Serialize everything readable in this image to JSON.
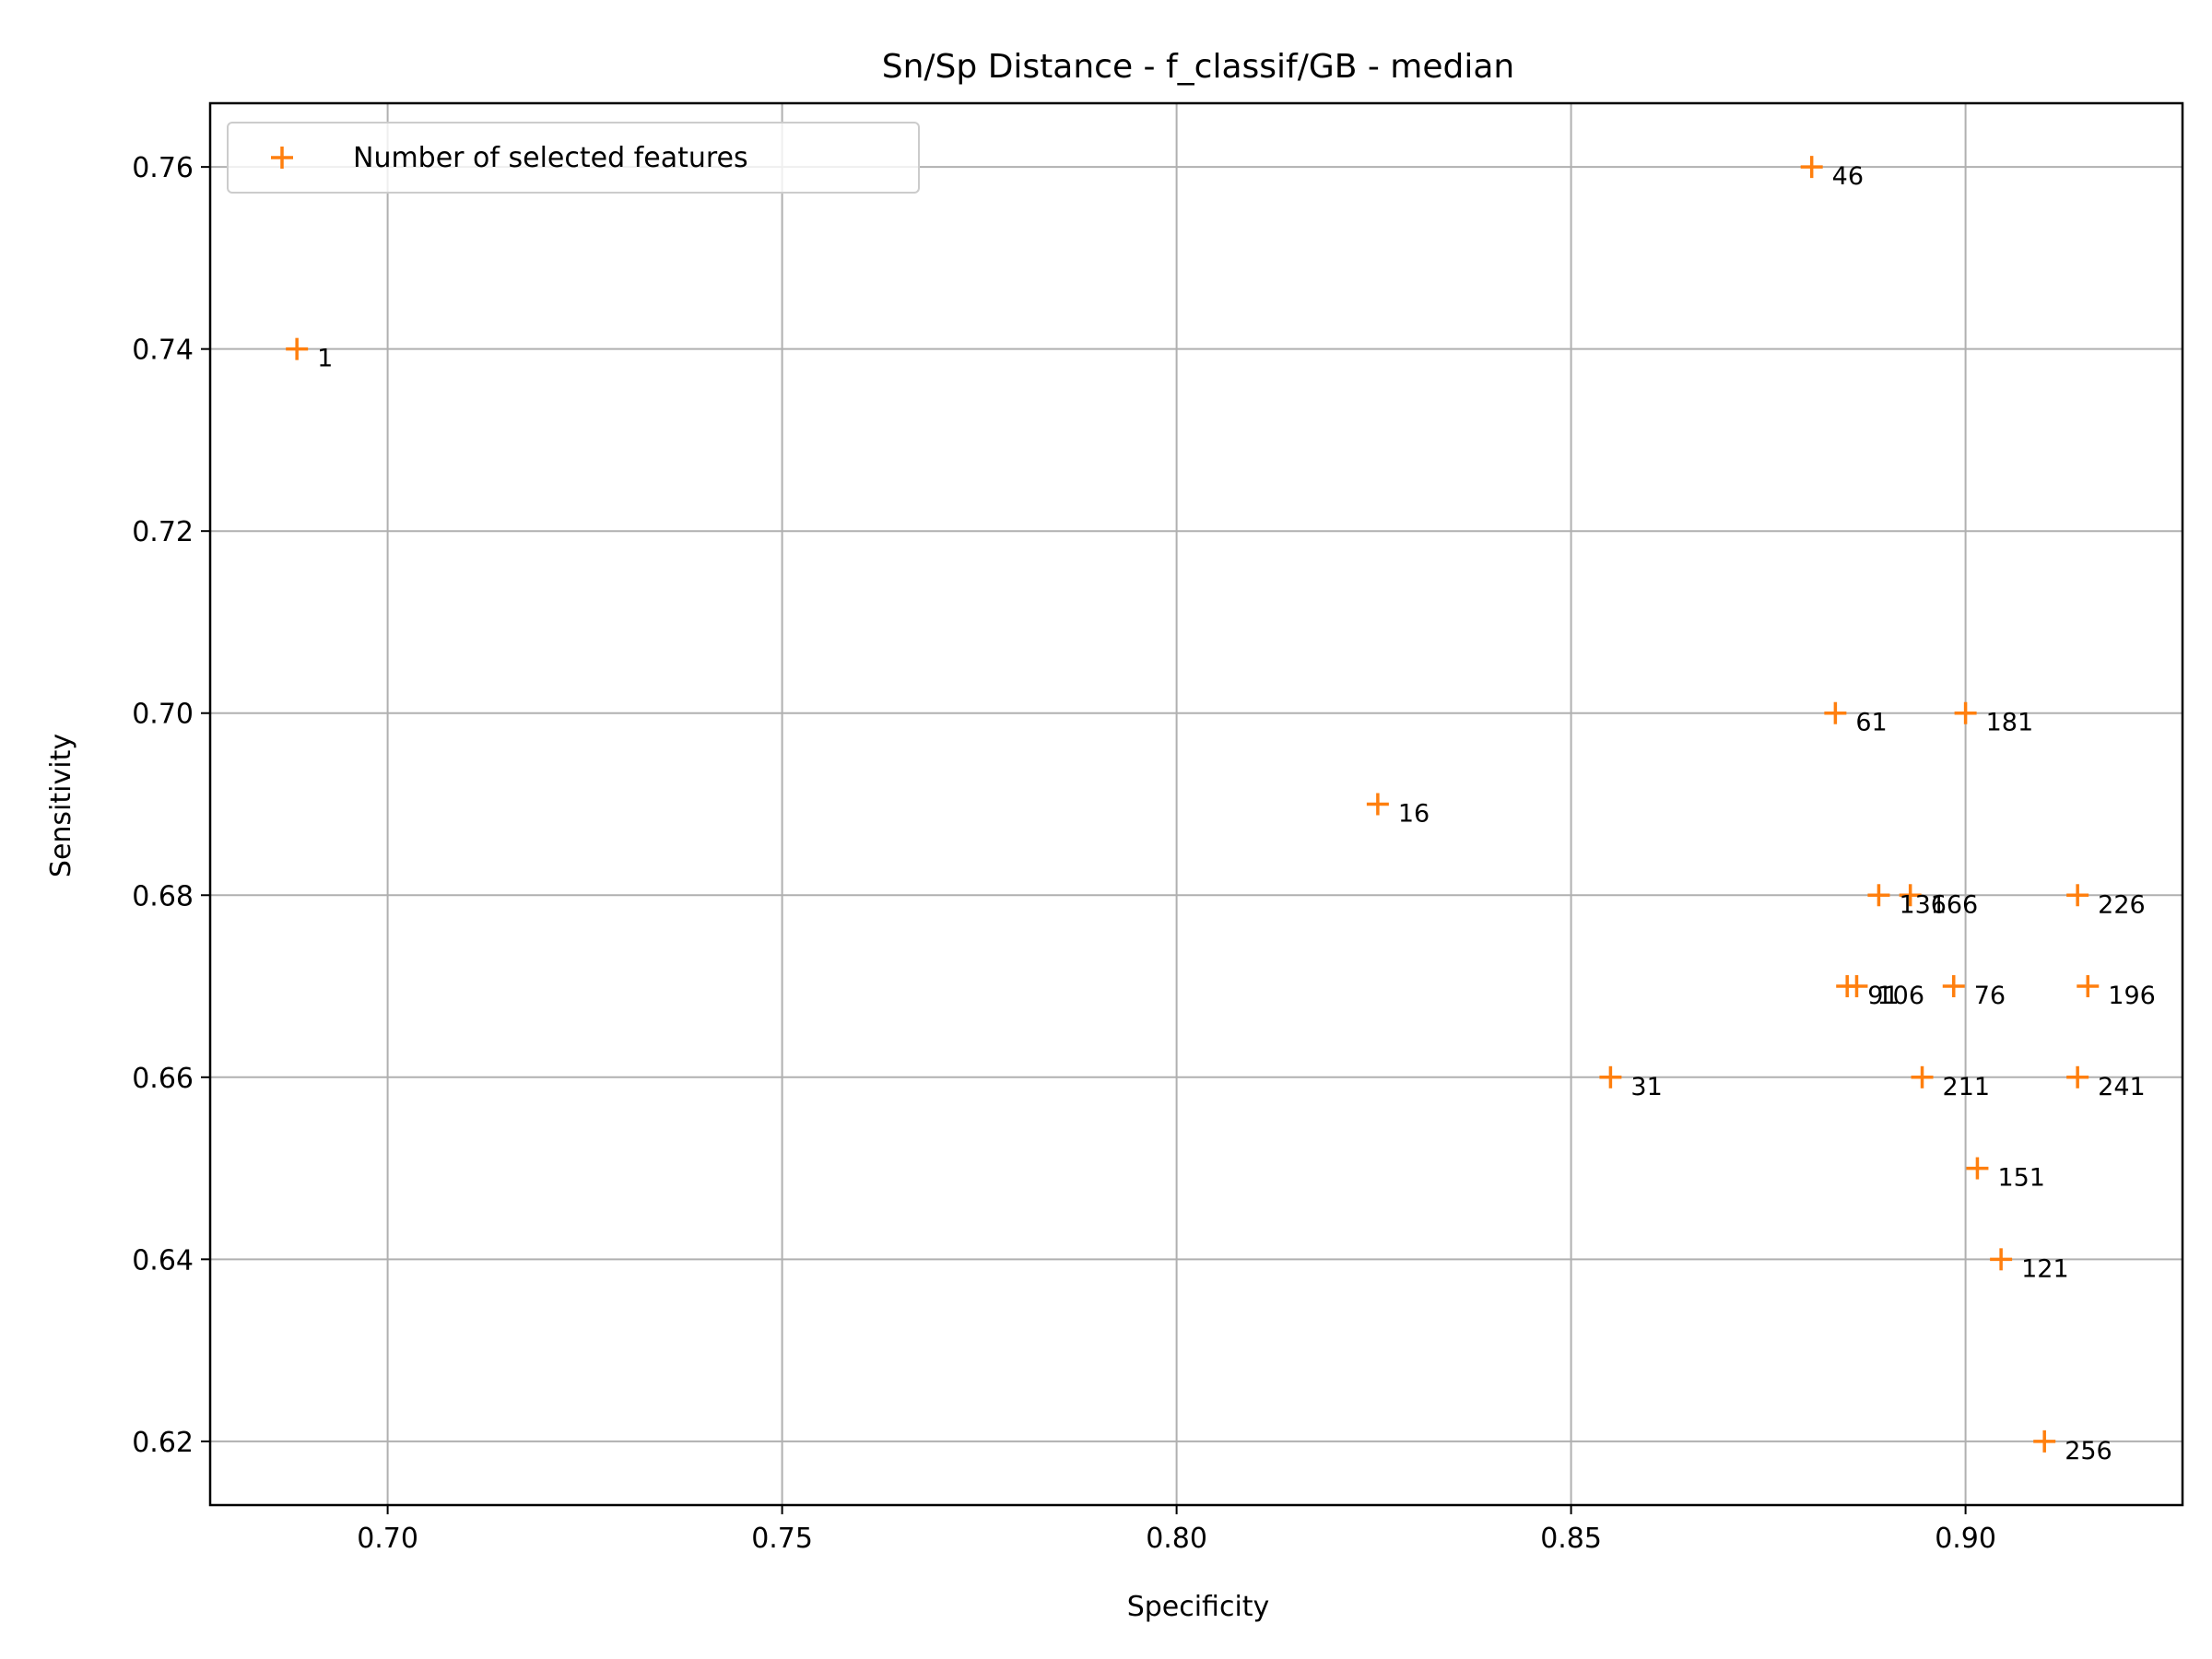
{
  "chart_data": {
    "type": "scatter",
    "title": "Sn/Sp Distance - f_classif/GB - median",
    "xlabel": "Specificity",
    "ylabel": "Sensitivity",
    "xlim": [
      0.6775,
      0.9275
    ],
    "ylim": [
      0.613,
      0.767
    ],
    "xticks": [
      0.7,
      0.75,
      0.8,
      0.85,
      0.9
    ],
    "xtick_labels": [
      "0.70",
      "0.75",
      "0.80",
      "0.85",
      "0.90"
    ],
    "yticks": [
      0.62,
      0.64,
      0.66,
      0.68,
      0.7,
      0.72,
      0.74,
      0.76
    ],
    "ytick_labels": [
      "0.62",
      "0.64",
      "0.66",
      "0.68",
      "0.70",
      "0.72",
      "0.74",
      "0.76"
    ],
    "grid": true,
    "legend_position": "top-left",
    "series": [
      {
        "name": "Number of selected features",
        "marker": "+",
        "color": "#ff7f0e",
        "points": [
          {
            "x": 0.6885,
            "y": 0.74,
            "label": "1"
          },
          {
            "x": 0.8255,
            "y": 0.69,
            "label": "16"
          },
          {
            "x": 0.855,
            "y": 0.66,
            "label": "31"
          },
          {
            "x": 0.8805,
            "y": 0.76,
            "label": "46"
          },
          {
            "x": 0.8835,
            "y": 0.7,
            "label": "61"
          },
          {
            "x": 0.8985,
            "y": 0.67,
            "label": "76"
          },
          {
            "x": 0.885,
            "y": 0.67,
            "label": "91"
          },
          {
            "x": 0.8862,
            "y": 0.67,
            "label": "106"
          },
          {
            "x": 0.9045,
            "y": 0.64,
            "label": "121"
          },
          {
            "x": 0.889,
            "y": 0.68,
            "label": "136"
          },
          {
            "x": 0.9015,
            "y": 0.65,
            "label": "151"
          },
          {
            "x": 0.893,
            "y": 0.68,
            "label": "166"
          },
          {
            "x": 0.9,
            "y": 0.7,
            "label": "181"
          },
          {
            "x": 0.9155,
            "y": 0.67,
            "label": "196"
          },
          {
            "x": 0.8945,
            "y": 0.66,
            "label": "211"
          },
          {
            "x": 0.9142,
            "y": 0.68,
            "label": "226"
          },
          {
            "x": 0.9142,
            "y": 0.66,
            "label": "241"
          },
          {
            "x": 0.91,
            "y": 0.62,
            "label": "256"
          }
        ]
      }
    ]
  }
}
